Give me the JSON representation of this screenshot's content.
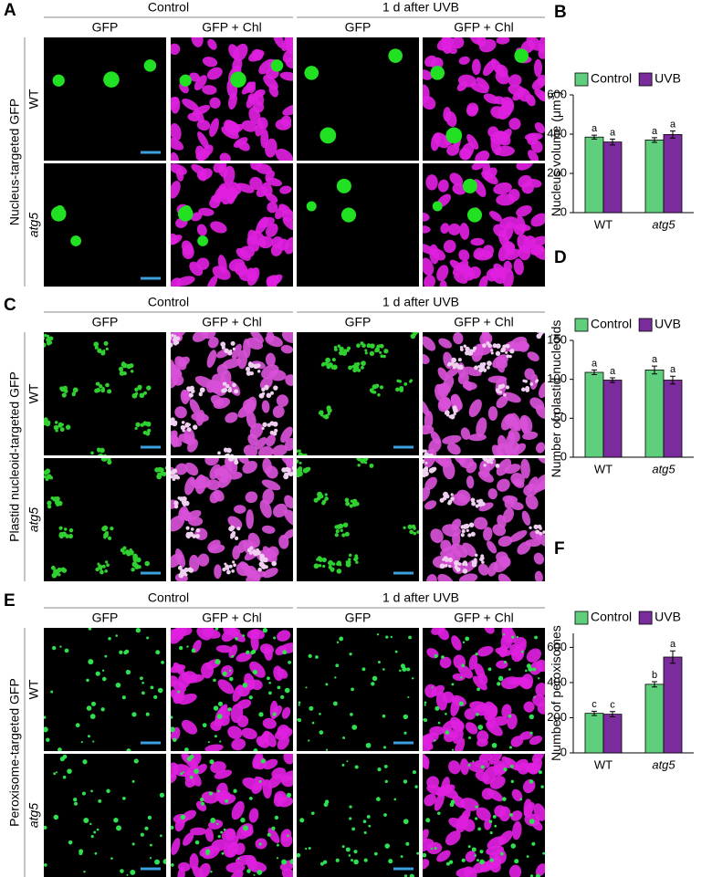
{
  "rows": [
    {
      "letter": "A",
      "label": "Nucleus-targeted GFP",
      "groups": [
        "Control",
        "1 d after UVB"
      ],
      "columns": [
        "GFP",
        "GFP + Chl",
        "GFP",
        "GFP + Chl"
      ],
      "genotypes": [
        "WT",
        "atg5"
      ]
    },
    {
      "letter": "C",
      "label": "Plastid nucleoid-targeted GFP",
      "groups": [
        "Control",
        "1 d after UVB"
      ],
      "columns": [
        "GFP",
        "GFP + Chl",
        "GFP",
        "GFP + Chl"
      ],
      "genotypes": [
        "WT",
        "atg5"
      ]
    },
    {
      "letter": "E",
      "label": "Peroxisome-targeted GFP",
      "groups": [
        "Control",
        "1 d after UVB"
      ],
      "columns": [
        "GFP",
        "GFP + Chl",
        "GFP",
        "GFP + Chl"
      ],
      "genotypes": [
        "WT",
        "atg5"
      ]
    }
  ],
  "chart_data": [
    {
      "type": "bar",
      "panel": "B",
      "ylabel_parts": [
        "Nucleus volume (μm",
        "3",
        ")"
      ],
      "categories": [
        "WT",
        "atg5"
      ],
      "ylim": [
        0,
        600
      ],
      "yticks": [
        0,
        200,
        400,
        600
      ],
      "grid": false,
      "legend": "top",
      "series": [
        {
          "name": "Control",
          "color": "#5fcf7d",
          "values": [
            385,
            370
          ],
          "errors": [
            10,
            12
          ],
          "significance": [
            "a",
            "a"
          ]
        },
        {
          "name": "UVB",
          "color": "#7b2c9c",
          "values": [
            360,
            398
          ],
          "errors": [
            15,
            18
          ],
          "significance": [
            "a",
            "a"
          ]
        }
      ]
    },
    {
      "type": "bar",
      "panel": "D",
      "ylabel_parts": [
        "Number of plastid nucleoids"
      ],
      "categories": [
        "WT",
        "atg5"
      ],
      "ylim": [
        0,
        150
      ],
      "yticks": [
        0,
        50,
        100,
        150
      ],
      "grid": false,
      "legend": "top",
      "series": [
        {
          "name": "Control",
          "color": "#5fcf7d",
          "values": [
            109,
            112
          ],
          "errors": [
            3,
            5
          ],
          "significance": [
            "a",
            "a"
          ]
        },
        {
          "name": "UVB",
          "color": "#7b2c9c",
          "values": [
            99,
            99
          ],
          "errors": [
            3,
            5
          ],
          "significance": [
            "a",
            "a"
          ]
        }
      ]
    },
    {
      "type": "bar",
      "panel": "F",
      "ylabel_parts": [
        "Number of peroxisomes"
      ],
      "categories": [
        "WT",
        "atg5"
      ],
      "ylim": [
        0,
        680
      ],
      "yticks": [
        0,
        200,
        400,
        600
      ],
      "grid": false,
      "legend": "top",
      "series": [
        {
          "name": "Control",
          "color": "#5fcf7d",
          "values": [
            225,
            390
          ],
          "errors": [
            12,
            15
          ],
          "significance": [
            "c",
            "b"
          ]
        },
        {
          "name": "UVB",
          "color": "#7b2c9c",
          "values": [
            220,
            545
          ],
          "errors": [
            15,
            35
          ],
          "significance": [
            "c",
            "a"
          ]
        }
      ]
    }
  ]
}
